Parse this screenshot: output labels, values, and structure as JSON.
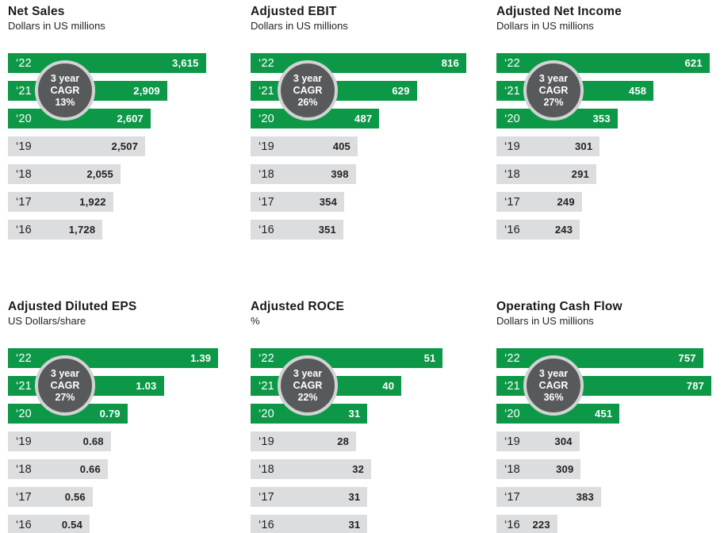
{
  "colors": {
    "bar_green": "#0d9848",
    "bar_gray": "#dcddde",
    "text_dark": "#231f20",
    "text_light": "#ffffff",
    "badge_fill": "#58595b",
    "badge_ring": "#d2d3d4"
  },
  "chart_data": [
    {
      "type": "bar",
      "orientation": "horizontal",
      "title": "Net Sales",
      "subtitle": "Dollars in US millions",
      "categories": [
        "‘22",
        "‘21",
        "‘20",
        "‘19",
        "‘18",
        "‘17",
        "‘16"
      ],
      "values": [
        3615,
        2909,
        2607,
        2507,
        2055,
        1922,
        1728
      ],
      "labels": [
        "3,615",
        "2,909",
        "2,607",
        "2,507",
        "2,055",
        "1,922",
        "1,728"
      ],
      "highlighted_categories": [
        "‘22",
        "‘21",
        "‘20"
      ],
      "xlim": [
        0,
        4200
      ],
      "badge": {
        "line1": "3 year",
        "line2": "CAGR",
        "line3": "13%"
      }
    },
    {
      "type": "bar",
      "orientation": "horizontal",
      "title": "Adjusted EBIT",
      "subtitle": "Dollars in US millions",
      "categories": [
        "‘22",
        "‘21",
        "‘20",
        "‘19",
        "‘18",
        "‘17",
        "‘16"
      ],
      "values": [
        816,
        629,
        487,
        405,
        398,
        354,
        351
      ],
      "labels": [
        "816",
        "629",
        "487",
        "405",
        "398",
        "354",
        "351"
      ],
      "highlighted_categories": [
        "‘22",
        "‘21",
        "‘20"
      ],
      "xlim": [
        0,
        870
      ],
      "badge": {
        "line1": "3 year",
        "line2": "CAGR",
        "line3": "26%"
      }
    },
    {
      "type": "bar",
      "orientation": "horizontal",
      "title": "Adjusted Net Income",
      "subtitle": "Dollars in US millions",
      "categories": [
        "‘22",
        "‘21",
        "‘20",
        "‘19",
        "‘18",
        "‘17",
        "‘16"
      ],
      "values": [
        621,
        458,
        353,
        301,
        291,
        249,
        243
      ],
      "labels": [
        "621",
        "458",
        "353",
        "301",
        "291",
        "249",
        "243"
      ],
      "highlighted_categories": [
        "‘22",
        "‘21",
        "‘20"
      ],
      "xlim": [
        0,
        670
      ],
      "badge": {
        "line1": "3 year",
        "line2": "CAGR",
        "line3": "27%"
      }
    },
    {
      "type": "bar",
      "orientation": "horizontal",
      "title": "Adjusted Diluted EPS",
      "subtitle": "US Dollars/share",
      "categories": [
        "‘22",
        "‘21",
        "‘20",
        "‘19",
        "‘18",
        "‘17",
        "‘16"
      ],
      "values": [
        1.39,
        1.03,
        0.79,
        0.68,
        0.66,
        0.56,
        0.54
      ],
      "labels": [
        "1.39",
        "1.03",
        "0.79",
        "0.68",
        "0.66",
        "0.56",
        "0.54"
      ],
      "highlighted_categories": [
        "‘22",
        "‘21",
        "‘20"
      ],
      "xlim": [
        0,
        1.52
      ],
      "badge": {
        "line1": "3 year",
        "line2": "CAGR",
        "line3": "27%"
      }
    },
    {
      "type": "bar",
      "orientation": "horizontal",
      "title": "Adjusted ROCE",
      "subtitle": "%",
      "categories": [
        "‘22",
        "‘21",
        "‘20",
        "‘19",
        "‘18",
        "‘17",
        "‘16"
      ],
      "values": [
        51,
        40,
        31,
        28,
        32,
        31,
        31
      ],
      "labels": [
        "51",
        "40",
        "31",
        "28",
        "32",
        "31",
        "31"
      ],
      "highlighted_categories": [
        "‘22",
        "‘21",
        "‘20"
      ],
      "xlim": [
        0,
        61
      ],
      "badge": {
        "line1": "3 year",
        "line2": "CAGR",
        "line3": "22%"
      }
    },
    {
      "type": "bar",
      "orientation": "horizontal",
      "title": "Operating Cash Flow",
      "subtitle": "Dollars in US millions",
      "categories": [
        "‘22",
        "‘21",
        "‘20",
        "‘19",
        "‘18",
        "‘17",
        "‘16"
      ],
      "values": [
        757,
        787,
        451,
        304,
        309,
        383,
        223
      ],
      "labels": [
        "757",
        "787",
        "451",
        "304",
        "309",
        "383",
        "223"
      ],
      "highlighted_categories": [
        "‘22",
        "‘21",
        "‘20"
      ],
      "xlim": [
        0,
        842
      ],
      "badge": {
        "line1": "3 year",
        "line2": "CAGR",
        "line3": "36%"
      }
    }
  ]
}
